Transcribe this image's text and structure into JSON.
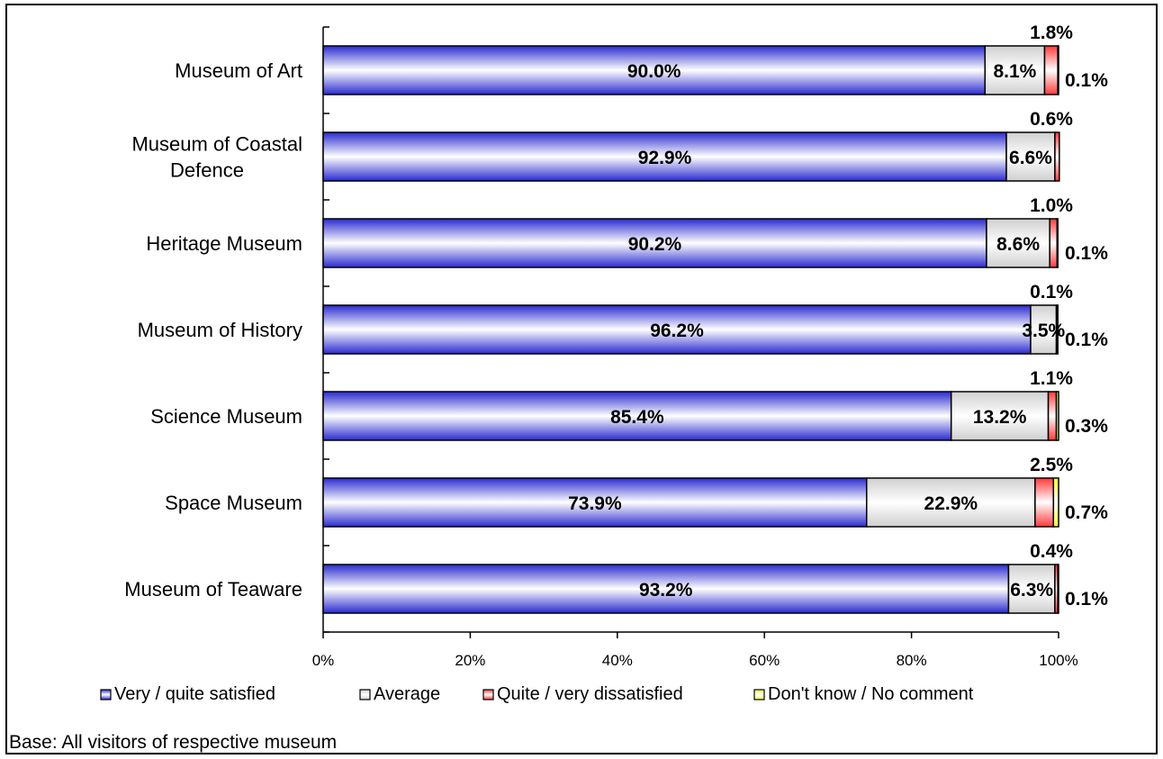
{
  "chart_data": {
    "type": "bar",
    "orientation": "horizontal",
    "stacked": "percent",
    "categories": [
      "Museum of Art",
      "Museum of Coastal Defence",
      "Heritage Museum",
      "Museum of History",
      "Science Museum",
      "Space Museum",
      "Museum of Teaware"
    ],
    "category_lines": [
      [
        "Museum of Art"
      ],
      [
        "Museum of Coastal",
        "Defence"
      ],
      [
        "Heritage Museum"
      ],
      [
        "Museum of History"
      ],
      [
        "Science Museum"
      ],
      [
        "Space Museum"
      ],
      [
        "Museum of Teaware"
      ]
    ],
    "series": [
      {
        "name": "Very / quite satisfied",
        "color": "#3333cc",
        "values": [
          90.0,
          92.9,
          90.2,
          96.2,
          85.4,
          73.9,
          93.2
        ]
      },
      {
        "name": "Average",
        "color": "#d9d9d9",
        "values": [
          8.1,
          6.6,
          8.6,
          3.5,
          13.2,
          22.9,
          6.3
        ]
      },
      {
        "name": "Quite / very dissatisfied",
        "color": "#ff5a5a",
        "values": [
          1.8,
          0.6,
          1.0,
          0.1,
          1.1,
          2.5,
          0.4
        ]
      },
      {
        "name": "Don't know / No comment",
        "color": "#ffff66",
        "values": [
          0.1,
          0.0,
          0.1,
          0.1,
          0.3,
          0.7,
          0.1
        ]
      }
    ],
    "labels": {
      "satisfied": [
        "90.0%",
        "92.9%",
        "90.2%",
        "96.2%",
        "85.4%",
        "73.9%",
        "93.2%"
      ],
      "average": [
        "8.1%",
        "6.6%",
        "8.6%",
        "3.5%",
        "13.2%",
        "22.9%",
        "6.3%"
      ],
      "dissatisfied": [
        "1.8%",
        "0.6%",
        "1.0%",
        "0.1%",
        "1.1%",
        "2.5%",
        "0.4%"
      ],
      "dont_know": [
        "0.1%",
        "",
        "0.1%",
        "0.1%",
        "0.3%",
        "0.7%",
        "0.1%"
      ]
    },
    "x_ticks": [
      "0%",
      "20%",
      "40%",
      "60%",
      "80%",
      "100%"
    ],
    "xlim": [
      0,
      100
    ],
    "grid": false,
    "legend_position": "bottom",
    "title": "",
    "xlabel": "",
    "ylabel": ""
  },
  "footnote": "Base: All visitors of respective museum"
}
